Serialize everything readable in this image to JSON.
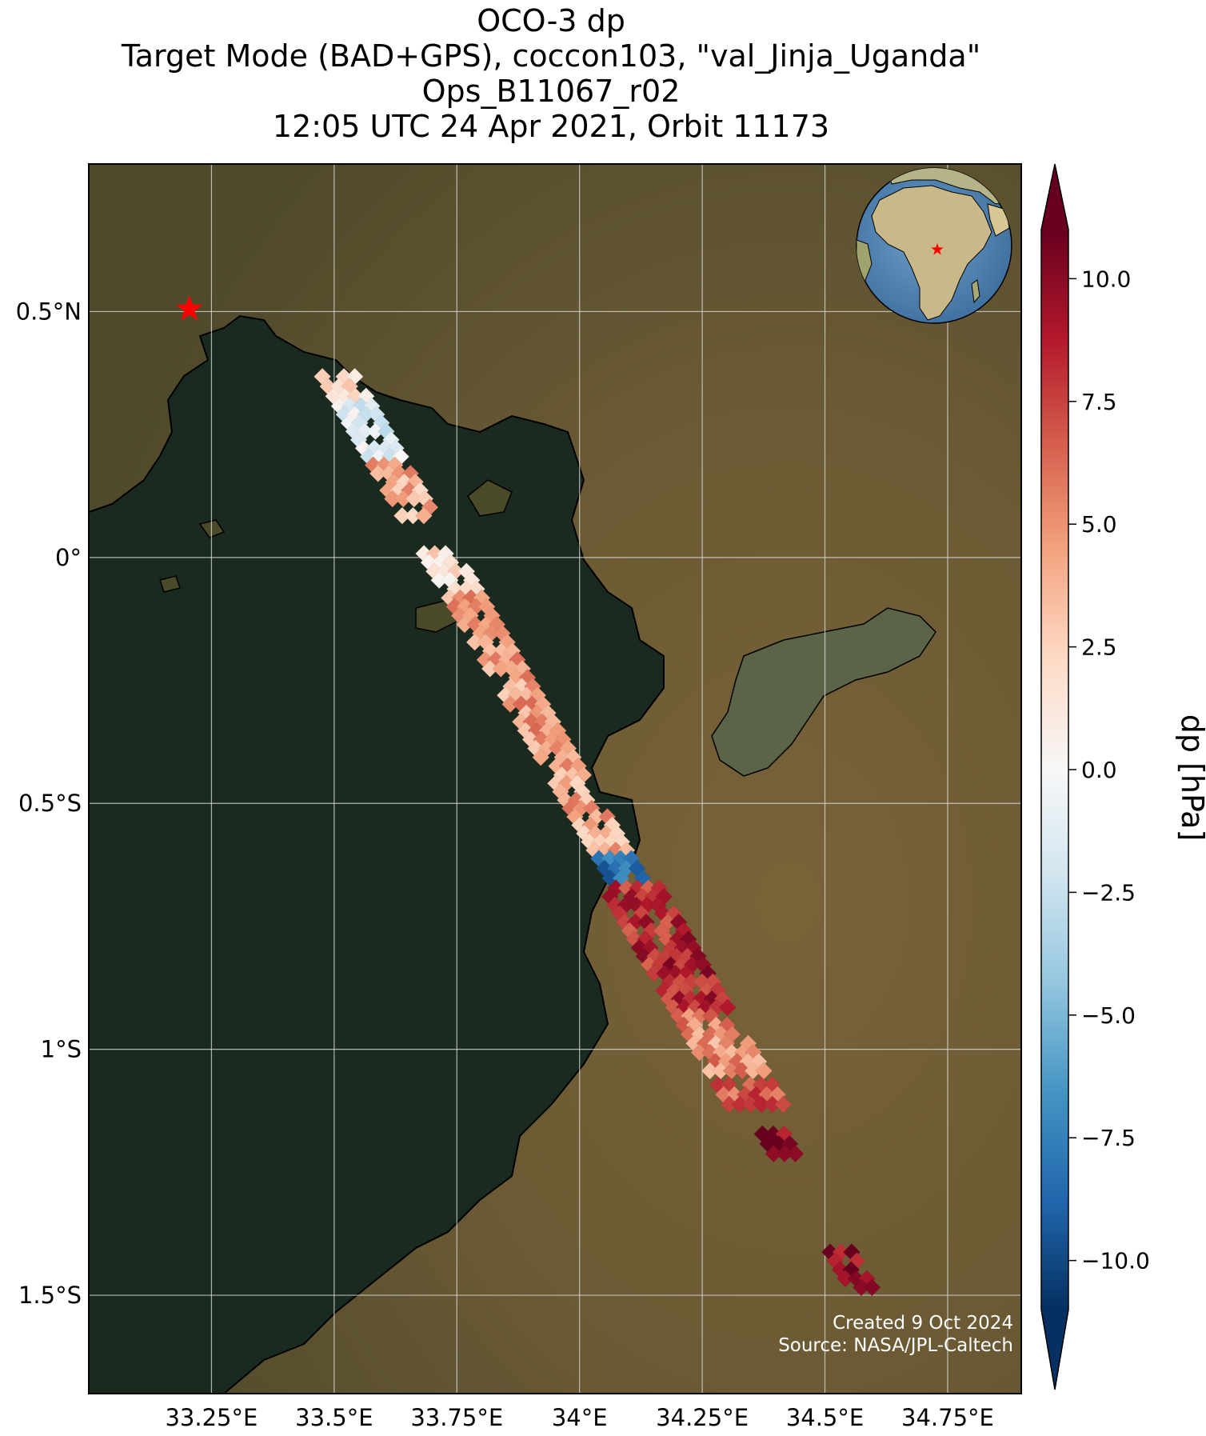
{
  "title": {
    "line1": "OCO-3 dp",
    "line2": "Target Mode (BAD+GPS), coccon103, \"val_Jinja_Uganda\"",
    "line3": "Ops_B11067_r02",
    "line4": "12:05 UTC 24 Apr 2021, Orbit 11173"
  },
  "map": {
    "lon_range": [
      33.0,
      34.9
    ],
    "lat_range": [
      -1.7,
      0.8
    ],
    "lon_ticks": [
      {
        "value": 33.25,
        "label": "33.25°E"
      },
      {
        "value": 33.5,
        "label": "33.5°E"
      },
      {
        "value": 33.75,
        "label": "33.75°E"
      },
      {
        "value": 34.0,
        "label": "34°E"
      },
      {
        "value": 34.25,
        "label": "34.25°E"
      },
      {
        "value": 34.5,
        "label": "34.5°E"
      },
      {
        "value": 34.75,
        "label": "34.75°E"
      }
    ],
    "lat_ticks": [
      {
        "value": 0.5,
        "label": "0.5°N"
      },
      {
        "value": 0.0,
        "label": "0°"
      },
      {
        "value": -0.5,
        "label": "0.5°S"
      },
      {
        "value": -1.0,
        "label": "1°S"
      },
      {
        "value": -1.5,
        "label": "1.5°S"
      }
    ],
    "grid": true,
    "target_site": {
      "lon": 33.205,
      "lat": 0.505,
      "marker": "red-star"
    },
    "inset_globe": {
      "placement": "top-right",
      "marker": "red-star"
    },
    "colors": {
      "land": "#6b5a34",
      "lake": "#1a2a1f",
      "target_marker": "#ff0000"
    }
  },
  "colorbar": {
    "label": "dp [hPa]",
    "vmin": -11,
    "vmax": 11,
    "extend": "both",
    "ticks": [
      {
        "value": 10.0,
        "label": "10.0"
      },
      {
        "value": 7.5,
        "label": "7.5"
      },
      {
        "value": 5.0,
        "label": "5.0"
      },
      {
        "value": 2.5,
        "label": "2.5"
      },
      {
        "value": 0.0,
        "label": "0.0"
      },
      {
        "value": -2.5,
        "label": "−2.5"
      },
      {
        "value": -5.0,
        "label": "−5.0"
      },
      {
        "value": -7.5,
        "label": "−7.5"
      },
      {
        "value": -10.0,
        "label": "−10.0"
      }
    ],
    "colormap": "RdBu_r"
  },
  "footer": {
    "created": "Created 9 Oct 2024",
    "source": "Source: NASA/JPL-Caltech"
  },
  "chart_data": {
    "type": "heatmap",
    "variable": "dp",
    "units": "hPa",
    "segments": [
      {
        "lat_start": 0.38,
        "lat_end": 0.32,
        "value_mean": 2.5
      },
      {
        "lat_start": 0.32,
        "lat_end": 0.2,
        "value_mean": -1.5
      },
      {
        "lat_start": 0.2,
        "lat_end": 0.08,
        "value_mean": 4.0
      },
      {
        "lat_start": 0.02,
        "lat_end": -0.07,
        "value_mean": 2.0
      },
      {
        "lat_start": -0.07,
        "lat_end": -0.43,
        "value_mean": 4.5
      },
      {
        "lat_start": -0.43,
        "lat_end": -0.6,
        "value_mean": 4.0
      },
      {
        "lat_start": -0.6,
        "lat_end": -0.66,
        "value_mean": -8.0
      },
      {
        "lat_start": -0.66,
        "lat_end": -0.92,
        "value_mean": 8.5
      },
      {
        "lat_start": -0.92,
        "lat_end": -1.05,
        "value_mean": 5.0
      },
      {
        "lat_start": -1.06,
        "lat_end": -1.12,
        "value_mean": 7.0
      },
      {
        "lat_start": -1.16,
        "lat_end": -1.22,
        "value_mean": 10.0
      },
      {
        "lat_start": -1.4,
        "lat_end": -1.49,
        "value_mean": 10.0
      }
    ]
  }
}
